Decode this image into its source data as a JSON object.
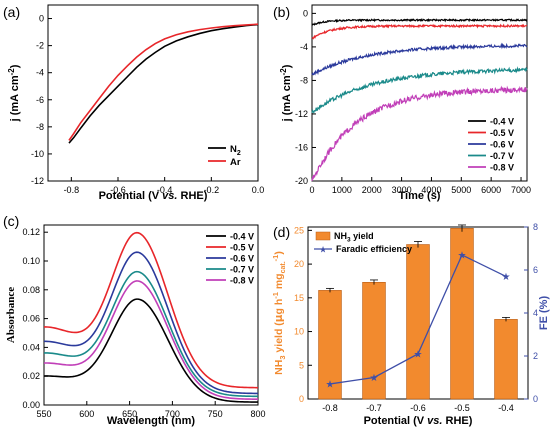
{
  "chart_data": [
    {
      "panel_label": "(a)",
      "type": "line",
      "xlabel_main": "Potential (V ",
      "xlabel_italic": "vs.",
      "xlabel_tail": " RHE)",
      "ylabel_main": "j (mA cm",
      "ylabel_sup": "-2",
      "ylabel_close": ")",
      "xlim": [
        -0.9,
        0.0
      ],
      "ylim": [
        -12,
        1
      ],
      "xticks": [
        "-0.8",
        "-0.6",
        "-0.4",
        "-0.2",
        "0.0"
      ],
      "yticks": [
        "0",
        "-2",
        "-4",
        "-6",
        "-8",
        "-10",
        "-12"
      ],
      "legend_position": "bottom-right",
      "series": [
        {
          "name_base": "N",
          "name_sub": "2",
          "color": "#000000",
          "x": [
            -0.81,
            -0.79,
            -0.76,
            -0.72,
            -0.68,
            -0.64,
            -0.6,
            -0.56,
            -0.52,
            -0.48,
            -0.44,
            -0.4,
            -0.35,
            -0.3,
            -0.25,
            -0.2,
            -0.15,
            -0.1,
            -0.05,
            0.0
          ],
          "y": [
            -9.2,
            -8.8,
            -8.1,
            -7.2,
            -6.4,
            -5.7,
            -5.0,
            -4.3,
            -3.6,
            -3.0,
            -2.5,
            -2.05,
            -1.65,
            -1.35,
            -1.1,
            -0.9,
            -0.75,
            -0.63,
            -0.52,
            -0.45
          ]
        },
        {
          "name_base": "Ar",
          "name_sub": "",
          "color": "#e8262a",
          "x": [
            -0.81,
            -0.79,
            -0.76,
            -0.72,
            -0.68,
            -0.64,
            -0.6,
            -0.56,
            -0.52,
            -0.48,
            -0.44,
            -0.4,
            -0.35,
            -0.3,
            -0.25,
            -0.2,
            -0.15,
            -0.1,
            -0.05,
            0.0
          ],
          "y": [
            -9.0,
            -8.5,
            -7.7,
            -6.8,
            -5.9,
            -5.0,
            -4.2,
            -3.5,
            -2.85,
            -2.3,
            -1.85,
            -1.5,
            -1.2,
            -0.98,
            -0.82,
            -0.7,
            -0.6,
            -0.53,
            -0.47,
            -0.42
          ]
        }
      ]
    },
    {
      "panel_label": "(b)",
      "type": "line",
      "xlabel": "Time (s)",
      "ylabel_main": "j (mA cm",
      "ylabel_sup": "-2",
      "ylabel_close": ")",
      "xlim": [
        0,
        7200
      ],
      "ylim": [
        -20,
        1
      ],
      "xticks": [
        "0",
        "1000",
        "2000",
        "3000",
        "4000",
        "5000",
        "6000",
        "7000"
      ],
      "yticks": [
        "0",
        "-4",
        "-8",
        "-12",
        "-16",
        "-20"
      ],
      "legend_position": "bottom-right",
      "series": [
        {
          "name": "-0.4 V",
          "color": "#000000",
          "start": -1.4,
          "end": -0.8,
          "tau": 400
        },
        {
          "name": "-0.5 V",
          "color": "#e8262a",
          "start": -3.0,
          "end": -1.5,
          "tau": 600
        },
        {
          "name": "-0.6 V",
          "color": "#2b3a9c",
          "start": -7.3,
          "end": -3.8,
          "tau": 1800
        },
        {
          "name": "-0.7 V",
          "color": "#1a8a8a",
          "start": -11.8,
          "end": -6.6,
          "tau": 2000
        },
        {
          "name": "-0.8 V",
          "color": "#c13fb8",
          "start": -20.0,
          "end": -9.0,
          "tau": 1500
        }
      ]
    },
    {
      "panel_label": "(c)",
      "type": "line",
      "xlabel": "Wavelength (nm)",
      "ylabel": "Absorbance",
      "xlim": [
        550,
        800
      ],
      "ylim": [
        0.0,
        0.125
      ],
      "xticks": [
        "550",
        "600",
        "650",
        "700",
        "750",
        "800"
      ],
      "yticks": [
        "0.00",
        "0.02",
        "0.04",
        "0.06",
        "0.08",
        "0.10",
        "0.12"
      ],
      "legend_position": "top-right",
      "series": [
        {
          "name": "-0.4 V",
          "color": "#000000",
          "start": 0.018,
          "peak": 0.072,
          "end": 0.002
        },
        {
          "name": "-0.5 V",
          "color": "#e8262a",
          "start": 0.042,
          "peak": 0.116,
          "end": 0.012
        },
        {
          "name": "-0.6 V",
          "color": "#2b3a9c",
          "start": 0.036,
          "peak": 0.103,
          "end": 0.008
        },
        {
          "name": "-0.7 V",
          "color": "#1a8a8a",
          "start": 0.03,
          "peak": 0.09,
          "end": 0.006
        },
        {
          "name": "-0.8 V",
          "color": "#c13fb8",
          "start": 0.025,
          "peak": 0.084,
          "end": 0.004
        }
      ]
    },
    {
      "panel_label": "(d)",
      "type": "bar",
      "xlabel_main": "Potential (V ",
      "xlabel_italic": "vs.",
      "xlabel_tail": " RHE)",
      "categories": [
        "-0.8",
        "-0.7",
        "-0.6",
        "-0.5",
        "-0.4"
      ],
      "ylim_left": [
        0,
        25.5
      ],
      "ylim_right": [
        0,
        8
      ],
      "yticks_left": [
        "0",
        "5",
        "10",
        "15",
        "20",
        "25"
      ],
      "yticks_right": [
        "0",
        "2",
        "4",
        "6",
        "8"
      ],
      "ylabel_left_parts": [
        "NH",
        "3",
        " yield (",
        "μ",
        "g h",
        "-1",
        " mg",
        "cat.",
        "-1",
        ")"
      ],
      "ylabel_right": "FE (%)",
      "legend_position": "top-left",
      "series": [
        {
          "name_base": "NH",
          "name_sub": "3",
          "name_tail": " yield",
          "type": "bar",
          "color": "#f28a2e",
          "values": [
            16.1,
            17.3,
            22.9,
            25.3,
            11.8
          ],
          "errors": [
            0.3,
            0.35,
            0.45,
            0.5,
            0.3
          ]
        },
        {
          "name": "Faradic efficiency",
          "type": "line",
          "color": "#3f4fa8",
          "values": [
            0.7,
            1.0,
            2.1,
            6.7,
            5.7
          ]
        }
      ]
    }
  ]
}
